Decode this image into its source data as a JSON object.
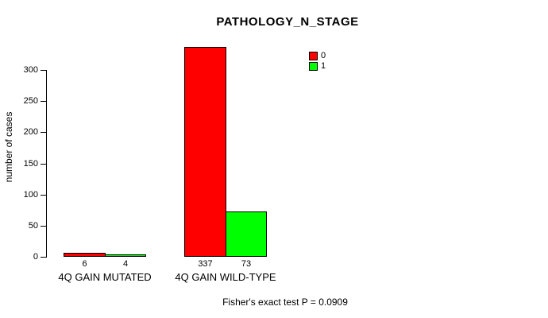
{
  "chart_data": {
    "type": "bar",
    "title": "PATHOLOGY_N_STAGE",
    "ylabel": "number of cases",
    "xlabel": "",
    "ylim": [
      0,
      300
    ],
    "yticks": [
      0,
      50,
      100,
      150,
      200,
      250,
      300
    ],
    "categories": [
      "4Q GAIN MUTATED",
      "4Q GAIN WILD-TYPE"
    ],
    "series": [
      {
        "name": "0",
        "color": "#FF0000",
        "values": [
          6,
          337
        ]
      },
      {
        "name": "1",
        "color": "#00FF00",
        "values": [
          4,
          73
        ]
      }
    ],
    "legend_position": "top-right",
    "grid": false,
    "annotation": "Fisher's exact test P = 0.0909"
  }
}
